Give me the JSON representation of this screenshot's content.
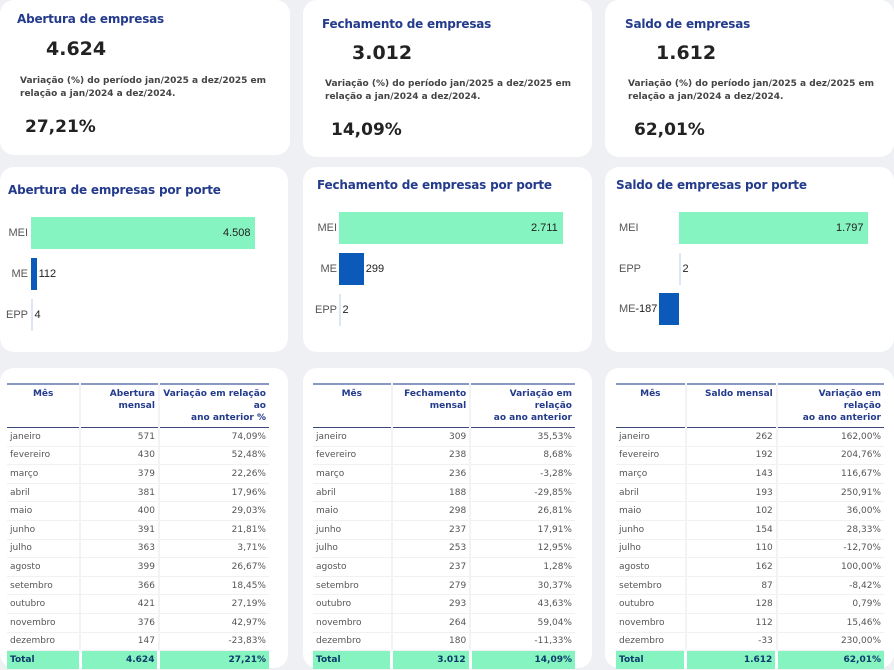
{
  "colors": {
    "title_blue": "#243b8c",
    "mei_green": "#86f4c0",
    "me_blue": "#0b59b8",
    "total_row": "#86f4c0",
    "background": "#eef0f4"
  },
  "kpis": [
    {
      "title": "Abertura de empresas",
      "value": "4.624",
      "description_line1": "Variação (%) do período jan/2025 a dez/2025 em",
      "description_line2": "relação a jan/2024 a dez/2024.",
      "pct": "27,21%"
    },
    {
      "title": "Fechamento de empresas",
      "value": "3.012",
      "description_line1": "Variação (%) do período jan/2025 a dez/2025 em",
      "description_line2": "relação a jan/2024 a dez/2024.",
      "pct": "14,09%"
    },
    {
      "title": "Saldo de empresas",
      "value": "1.612",
      "description_line1": "Variação (%) do período jan/2025 a dez/2025 em",
      "description_line2": "relação a jan/2024 a dez/2024.",
      "pct": "62,01%"
    }
  ],
  "chart_data": [
    {
      "type": "bar",
      "orientation": "horizontal",
      "title": "Abertura de empresas por porte",
      "categories": [
        "MEI",
        "ME",
        "EPP"
      ],
      "values": [
        4508,
        112,
        4
      ],
      "labels": [
        "4.508",
        "112",
        "4"
      ],
      "colors": [
        "#86f4c0",
        "#0b59b8",
        "#0b59b8"
      ]
    },
    {
      "type": "bar",
      "orientation": "horizontal",
      "title": "Fechamento de empresas por porte",
      "categories": [
        "MEI",
        "ME",
        "EPP"
      ],
      "values": [
        2711,
        299,
        2
      ],
      "labels": [
        "2.711",
        "299",
        "2"
      ],
      "colors": [
        "#86f4c0",
        "#0b59b8",
        "#0b59b8"
      ]
    },
    {
      "type": "bar",
      "orientation": "horizontal",
      "title": "Saldo de empresas por porte",
      "categories": [
        "MEI",
        "EPP",
        "ME"
      ],
      "values": [
        1797,
        2,
        -187
      ],
      "labels": [
        "1.797",
        "2",
        "-187"
      ],
      "colors": [
        "#86f4c0",
        "#0b59b8",
        "#0b59b8"
      ]
    }
  ],
  "tables": [
    {
      "headers": [
        "Mês",
        "Abertura mensal",
        "Variação em relação ao ano anterior %"
      ],
      "header_lines": [
        [
          "Mês"
        ],
        [
          "Abertura",
          "mensal"
        ],
        [
          "Variação em relação ao",
          "ano anterior %"
        ]
      ],
      "rows": [
        [
          "janeiro",
          "571",
          "74,09%"
        ],
        [
          "fevereiro",
          "430",
          "52,48%"
        ],
        [
          "março",
          "379",
          "22,26%"
        ],
        [
          "abril",
          "381",
          "17,96%"
        ],
        [
          "maio",
          "400",
          "29,03%"
        ],
        [
          "junho",
          "391",
          "21,81%"
        ],
        [
          "julho",
          "363",
          "3,71%"
        ],
        [
          "agosto",
          "399",
          "26,67%"
        ],
        [
          "setembro",
          "366",
          "18,45%"
        ],
        [
          "outubro",
          "421",
          "27,19%"
        ],
        [
          "novembro",
          "376",
          "42,97%"
        ],
        [
          "dezembro",
          "147",
          "-23,83%"
        ]
      ],
      "total": [
        "Total",
        "4.624",
        "27,21%"
      ]
    },
    {
      "headers": [
        "Mês",
        "Fechamento mensal",
        "Variação em relação ao ano anterior"
      ],
      "header_lines": [
        [
          "Mês"
        ],
        [
          "Fechamento",
          "mensal"
        ],
        [
          "Variação em relação",
          "ao ano anterior"
        ]
      ],
      "rows": [
        [
          "janeiro",
          "309",
          "35,53%"
        ],
        [
          "fevereiro",
          "238",
          "8,68%"
        ],
        [
          "março",
          "236",
          "-3,28%"
        ],
        [
          "abril",
          "188",
          "-29,85%"
        ],
        [
          "maio",
          "298",
          "26,81%"
        ],
        [
          "junho",
          "237",
          "17,91%"
        ],
        [
          "julho",
          "253",
          "12,95%"
        ],
        [
          "agosto",
          "237",
          "1,28%"
        ],
        [
          "setembro",
          "279",
          "30,37%"
        ],
        [
          "outubro",
          "293",
          "43,63%"
        ],
        [
          "novembro",
          "264",
          "59,04%"
        ],
        [
          "dezembro",
          "180",
          "-11,33%"
        ]
      ],
      "total": [
        "Total",
        "3.012",
        "14,09%"
      ]
    },
    {
      "headers": [
        "Mês",
        "Saldo mensal",
        "Variação em relação ao ano anterior"
      ],
      "header_lines": [
        [
          "Mês"
        ],
        [
          "Saldo mensal"
        ],
        [
          "Variação em relação",
          "ao ano anterior"
        ]
      ],
      "rows": [
        [
          "janeiro",
          "262",
          "162,00%"
        ],
        [
          "fevereiro",
          "192",
          "204,76%"
        ],
        [
          "março",
          "143",
          "116,67%"
        ],
        [
          "abril",
          "193",
          "250,91%"
        ],
        [
          "maio",
          "102",
          "36,00%"
        ],
        [
          "junho",
          "154",
          "28,33%"
        ],
        [
          "julho",
          "110",
          "-12,70%"
        ],
        [
          "agosto",
          "162",
          "100,00%"
        ],
        [
          "setembro",
          "87",
          "-8,42%"
        ],
        [
          "outubro",
          "128",
          "0,79%"
        ],
        [
          "novembro",
          "112",
          "15,46%"
        ],
        [
          "dezembro",
          "-33",
          "230,00%"
        ]
      ],
      "total": [
        "Total",
        "1.612",
        "62,01%"
      ]
    }
  ]
}
